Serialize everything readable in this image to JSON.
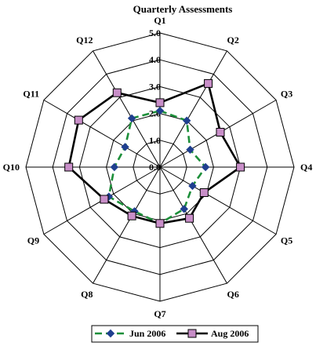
{
  "chart_data": {
    "type": "radar",
    "title": "Quarterly Assessments",
    "categories": [
      "Q1",
      "Q2",
      "Q3",
      "Q4",
      "Q5",
      "Q6",
      "Q7",
      "Q8",
      "Q9",
      "Q10",
      "Q11",
      "Q12"
    ],
    "rlim": [
      0,
      5
    ],
    "ticks": [
      "0.0",
      "1.0",
      "2.0",
      "3.0",
      "4.0",
      "5.0"
    ],
    "grid": true,
    "legend_position": "bottom",
    "series": [
      {
        "name": "Jun 2006",
        "values": [
          2.1,
          2.0,
          1.3,
          1.7,
          1.4,
          1.8,
          2.1,
          1.9,
          2.2,
          1.7,
          1.5,
          2.1
        ],
        "color": "#1d8f3a",
        "marker": "diamond",
        "marker_color": "#1f3f8f",
        "dash": "dashed"
      },
      {
        "name": "Aug 2006",
        "values": [
          2.4,
          3.6,
          2.6,
          3.0,
          1.9,
          2.2,
          2.1,
          2.1,
          2.4,
          3.4,
          3.5,
          3.2
        ],
        "color": "#000000",
        "marker": "square",
        "marker_color": "#c88ec8",
        "dash": "solid"
      }
    ]
  }
}
